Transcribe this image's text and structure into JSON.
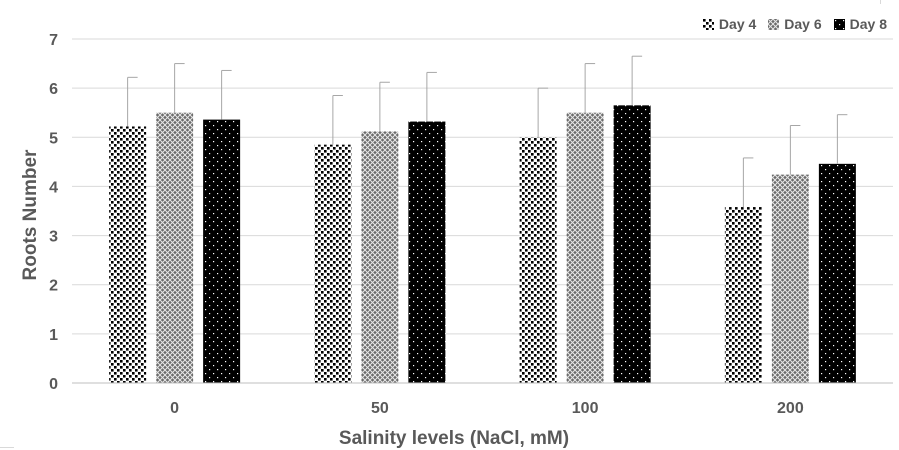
{
  "chart_data": {
    "type": "bar",
    "title": "",
    "xlabel": "Salinity levels  (NaCl, mM)",
    "ylabel": "Roots Number",
    "categories": [
      "0",
      "50",
      "100",
      "200"
    ],
    "ylim": [
      0,
      7
    ],
    "yticks": [
      "0",
      "1",
      "2",
      "3",
      "4",
      "5",
      "6",
      "7"
    ],
    "grid": "horizontal",
    "legend_position": "top-right",
    "series": [
      {
        "name": "Day 4",
        "values": [
          5.22,
          4.85,
          5.0,
          3.58
        ],
        "errors": [
          1.0,
          1.0,
          1.0,
          1.0
        ],
        "pattern": "dots-on-white"
      },
      {
        "name": "Day 6",
        "values": [
          5.5,
          5.12,
          5.5,
          4.24
        ],
        "errors": [
          1.0,
          1.0,
          1.0,
          1.0
        ],
        "pattern": "grey-crosshatch"
      },
      {
        "name": "Day 8",
        "values": [
          5.36,
          5.32,
          5.65,
          4.46
        ],
        "errors": [
          1.0,
          1.0,
          1.0,
          1.0
        ],
        "pattern": "dots-on-black"
      }
    ],
    "colors": {
      "axis_text": "#595959",
      "grid": "#d9d9d9",
      "error_bar": "#a6a6a6"
    }
  }
}
